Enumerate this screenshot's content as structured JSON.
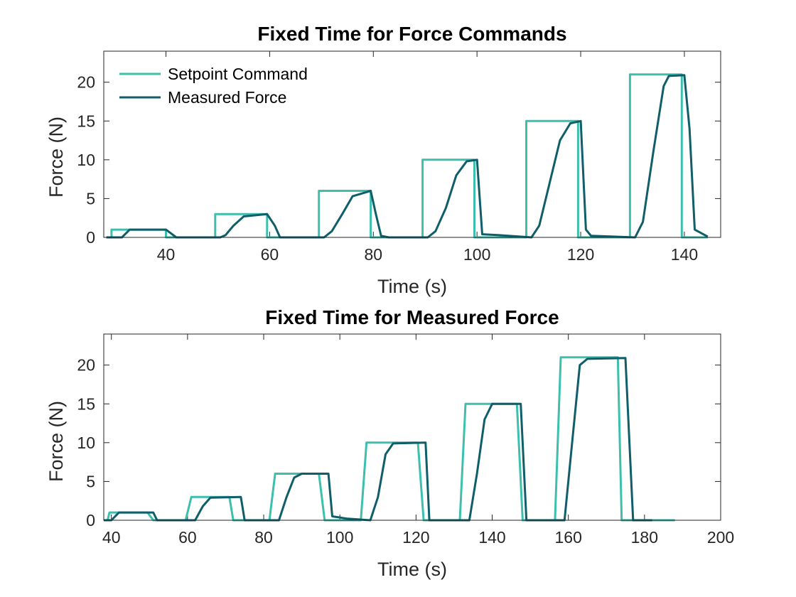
{
  "chart_data": [
    {
      "type": "line",
      "title": "Fixed Time for Force Commands",
      "xlabel": "Time (s)",
      "ylabel": "Force (N)",
      "xlim": [
        28,
        147
      ],
      "ylim": [
        0,
        24
      ],
      "xticks": [
        40,
        60,
        80,
        100,
        120,
        140
      ],
      "yticks": [
        0,
        5,
        10,
        15,
        20
      ],
      "grid": false,
      "legend": "top-left",
      "series": [
        {
          "name": "Setpoint Command",
          "color": "#3dbfae",
          "points": [
            [
              28.5,
              0
            ],
            [
              29.5,
              0
            ],
            [
              29.5,
              1
            ],
            [
              40,
              1
            ],
            [
              40,
              0
            ],
            [
              49.5,
              0
            ],
            [
              49.5,
              3
            ],
            [
              59.5,
              3
            ],
            [
              59.5,
              0
            ],
            [
              69.5,
              0
            ],
            [
              69.5,
              6
            ],
            [
              79.5,
              6
            ],
            [
              79.5,
              0
            ],
            [
              89.5,
              0
            ],
            [
              89.5,
              10
            ],
            [
              99.5,
              10
            ],
            [
              99.5,
              0
            ],
            [
              109.5,
              0
            ],
            [
              109.5,
              15
            ],
            [
              119.5,
              15
            ],
            [
              119.5,
              0
            ],
            [
              129.5,
              0
            ],
            [
              129.5,
              21
            ],
            [
              139.5,
              21
            ],
            [
              139.5,
              0
            ],
            [
              144.5,
              0
            ]
          ]
        },
        {
          "name": "Measured Force",
          "color": "#0f5e69",
          "points": [
            [
              28.5,
              0
            ],
            [
              31.5,
              0
            ],
            [
              33,
              1
            ],
            [
              40,
              1
            ],
            [
              42,
              0
            ],
            [
              50.5,
              0
            ],
            [
              51.5,
              0.3
            ],
            [
              53,
              1.5
            ],
            [
              55,
              2.7
            ],
            [
              59.5,
              3
            ],
            [
              61,
              1.5
            ],
            [
              62,
              0
            ],
            [
              64.5,
              0
            ],
            [
              70.5,
              0
            ],
            [
              72,
              0.8
            ],
            [
              74,
              3
            ],
            [
              76,
              5.3
            ],
            [
              79.5,
              6
            ],
            [
              80.5,
              3
            ],
            [
              81.5,
              0.2
            ],
            [
              83,
              0
            ],
            [
              90.5,
              0
            ],
            [
              92,
              0.8
            ],
            [
              94,
              3.8
            ],
            [
              96,
              8
            ],
            [
              98,
              9.8
            ],
            [
              100,
              10
            ],
            [
              101,
              0.4
            ],
            [
              104,
              0.3
            ],
            [
              110.5,
              0
            ],
            [
              112,
              1.5
            ],
            [
              114,
              7
            ],
            [
              116,
              12.5
            ],
            [
              118,
              14.7
            ],
            [
              120,
              15
            ],
            [
              121,
              1
            ],
            [
              122,
              0.2
            ],
            [
              130.5,
              0
            ],
            [
              132,
              2
            ],
            [
              134,
              11
            ],
            [
              136,
              19.5
            ],
            [
              137,
              20.8
            ],
            [
              140,
              20.9
            ],
            [
              141,
              14
            ],
            [
              142,
              1
            ],
            [
              144.5,
              0.1
            ]
          ]
        }
      ]
    },
    {
      "type": "line",
      "title": "Fixed Time for Measured Force",
      "xlabel": "Time (s)",
      "ylabel": "Force (N)",
      "xlim": [
        38,
        200
      ],
      "ylim": [
        0,
        24
      ],
      "xticks": [
        40,
        60,
        80,
        100,
        120,
        140,
        160,
        180,
        200
      ],
      "yticks": [
        0,
        5,
        10,
        15,
        20
      ],
      "grid": false,
      "series": [
        {
          "name": "Setpoint Command",
          "color": "#3dbfae",
          "points": [
            [
              38,
              0
            ],
            [
              39,
              0
            ],
            [
              39.5,
              1
            ],
            [
              49.5,
              1
            ],
            [
              51,
              0
            ],
            [
              59.5,
              0
            ],
            [
              61,
              3
            ],
            [
              71,
              3
            ],
            [
              72,
              0
            ],
            [
              81.5,
              0
            ],
            [
              83,
              6
            ],
            [
              94.5,
              6
            ],
            [
              96,
              0
            ],
            [
              105.5,
              0
            ],
            [
              107,
              10
            ],
            [
              120.5,
              10
            ],
            [
              122,
              0
            ],
            [
              131.5,
              0
            ],
            [
              133,
              15
            ],
            [
              146.5,
              15
            ],
            [
              148,
              0
            ],
            [
              156.5,
              0
            ],
            [
              158,
              21
            ],
            [
              173,
              21
            ],
            [
              174,
              0
            ],
            [
              188,
              0
            ]
          ]
        },
        {
          "name": "Measured Force",
          "color": "#0f5e69",
          "points": [
            [
              38,
              0
            ],
            [
              40,
              0
            ],
            [
              42,
              1
            ],
            [
              51,
              1
            ],
            [
              52,
              0
            ],
            [
              62,
              0
            ],
            [
              64,
              1.8
            ],
            [
              66,
              2.9
            ],
            [
              74,
              3
            ],
            [
              75,
              0
            ],
            [
              84,
              0
            ],
            [
              86,
              3
            ],
            [
              88,
              5.5
            ],
            [
              90,
              6
            ],
            [
              97,
              6
            ],
            [
              98,
              0.5
            ],
            [
              102,
              0.2
            ],
            [
              108,
              0
            ],
            [
              110,
              3
            ],
            [
              112,
              8.5
            ],
            [
              114,
              9.9
            ],
            [
              122.5,
              10
            ],
            [
              123.5,
              0
            ],
            [
              134,
              0
            ],
            [
              136,
              6
            ],
            [
              138,
              13
            ],
            [
              140,
              15
            ],
            [
              147.5,
              15
            ],
            [
              149,
              0
            ],
            [
              159,
              0
            ],
            [
              161,
              10
            ],
            [
              163,
              20
            ],
            [
              165,
              20.8
            ],
            [
              175,
              20.9
            ],
            [
              177,
              0
            ],
            [
              182,
              0
            ]
          ]
        }
      ]
    }
  ]
}
